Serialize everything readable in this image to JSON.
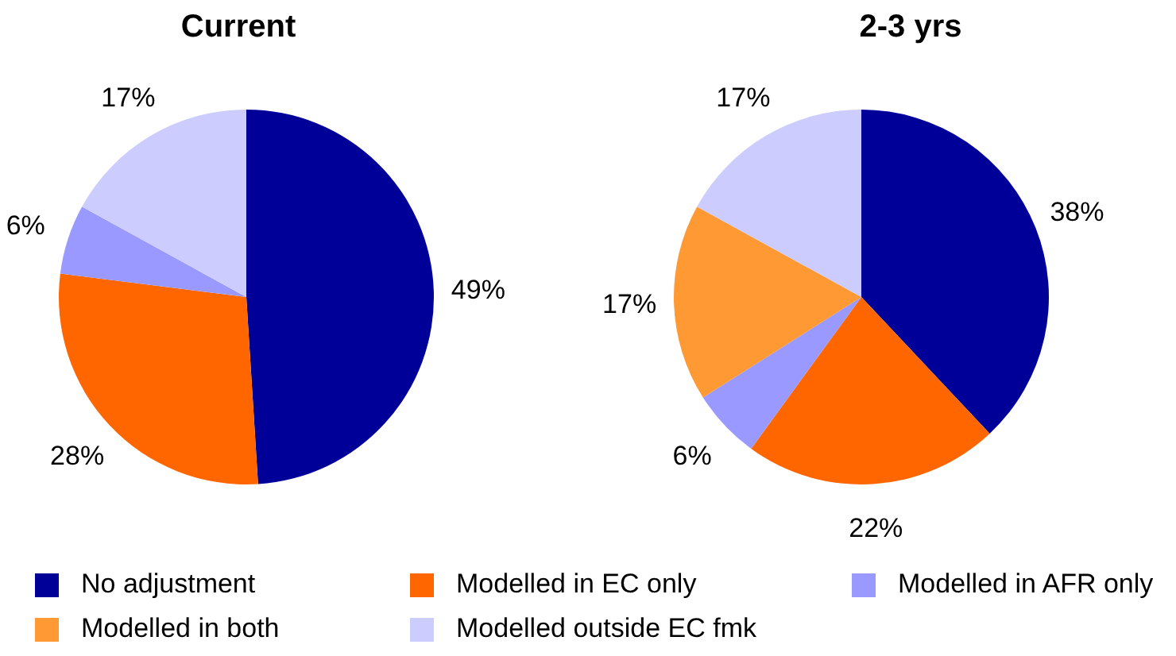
{
  "chart_data": [
    {
      "type": "pie",
      "title": "Current",
      "categories": [
        null,
        null,
        null,
        null,
        null
      ],
      "values": [
        49,
        28,
        6,
        0,
        17
      ],
      "value_labels": [
        "49%",
        "28%",
        "6%",
        null,
        "17%"
      ],
      "colors": [
        "#000099",
        "#ff6600",
        "#9999ff",
        "#ff9933",
        "#ccccff"
      ]
    },
    {
      "type": "pie",
      "title": "2-3 yrs",
      "categories": [
        "No adjustment",
        "Modelled in EC only",
        "Modelled in AFR only",
        "Modelled in both",
        "Modelled outside EC fmk"
      ],
      "values": [
        38,
        22,
        6,
        17,
        17
      ],
      "value_labels": [
        "38%",
        "22%",
        "6%",
        "17%",
        "17%"
      ],
      "colors": [
        "#000099",
        "#ff6600",
        "#9999ff",
        "#ff9933",
        "#ccccff"
      ],
      "legend": "bottom"
    }
  ]
}
